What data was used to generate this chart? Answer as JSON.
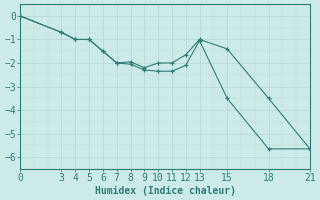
{
  "title": "",
  "xlabel": "Humidex (Indice chaleur)",
  "ylabel": "",
  "background_color": "#cceae7",
  "line_color": "#2d7d74",
  "grid_color_minor": "#c0dbd8",
  "grid_color_major": "#b8d4d1",
  "line1_x": [
    0,
    3,
    4,
    5,
    6,
    7,
    8,
    9,
    10,
    11,
    12,
    13,
    15,
    18,
    21
  ],
  "line1_y": [
    0.0,
    -0.7,
    -1.0,
    -1.0,
    -1.5,
    -2.0,
    -1.95,
    -2.2,
    -2.0,
    -2.0,
    -1.65,
    -1.0,
    -1.4,
    -3.5,
    -5.65
  ],
  "line2_x": [
    0,
    3,
    4,
    5,
    6,
    7,
    8,
    9,
    10,
    11,
    12,
    13,
    15,
    18,
    21
  ],
  "line2_y": [
    0.0,
    -0.7,
    -1.0,
    -1.0,
    -1.5,
    -2.0,
    -2.05,
    -2.3,
    -2.35,
    -2.35,
    -2.1,
    -1.05,
    -3.5,
    -5.65,
    -5.65
  ],
  "xlim": [
    0,
    21
  ],
  "ylim": [
    -6.5,
    0.5
  ],
  "xticks": [
    0,
    3,
    4,
    5,
    6,
    7,
    8,
    9,
    10,
    11,
    12,
    13,
    15,
    18,
    21
  ],
  "yticks": [
    0,
    -1,
    -2,
    -3,
    -4,
    -5,
    -6
  ],
  "figsize": [
    3.2,
    2.0
  ],
  "dpi": 100,
  "tick_fontsize": 7,
  "xlabel_fontsize": 7
}
